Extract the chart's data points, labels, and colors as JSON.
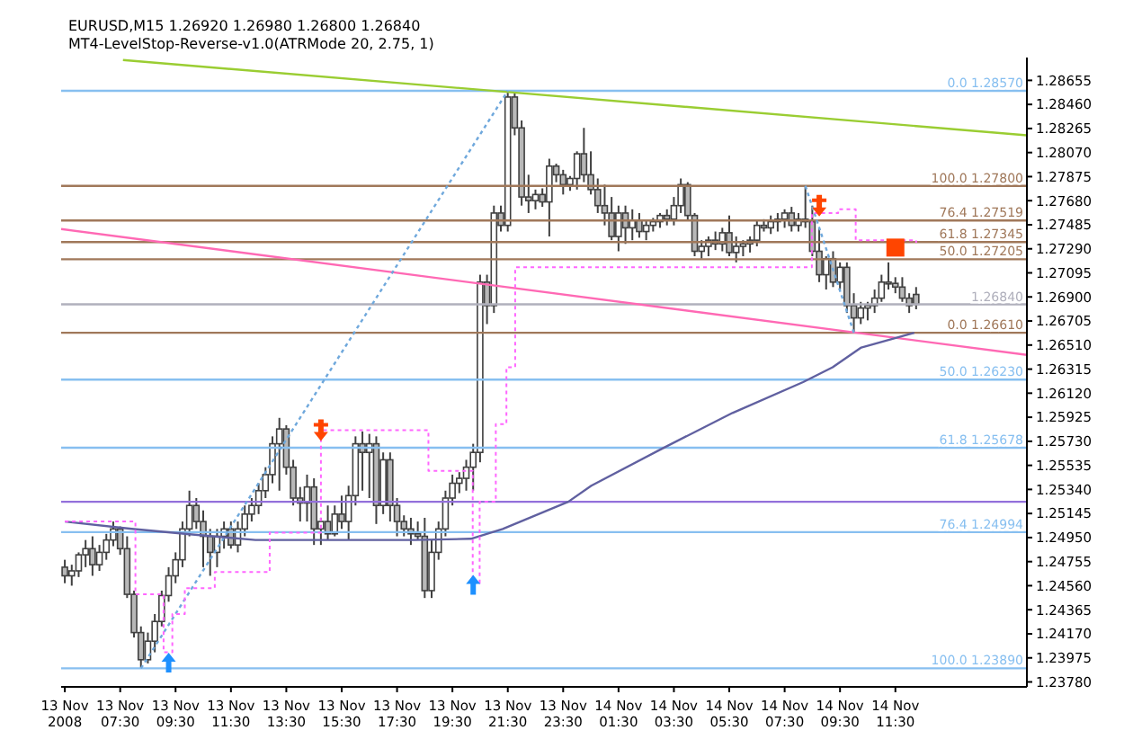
{
  "chart_data": {
    "type": "candlestick",
    "title": "EURUSD,M15  1.26920 1.26980 1.26800 1.26840",
    "subtitle": "MT4-LevelStop-Reverse-v1.0(ATRMode 20, 2.75, 1)",
    "color": "#404040",
    "x": [
      "2008-11-13T05:30",
      "2008-11-13T05:45",
      "2008-11-13T06:00",
      "2008-11-13T06:15",
      "2008-11-13T06:30",
      "2008-11-13T06:45",
      "2008-11-13T07:00",
      "2008-11-13T07:15",
      "2008-11-13T07:30",
      "2008-11-13T07:45",
      "2008-11-13T08:00",
      "2008-11-13T08:15",
      "2008-11-13T08:30",
      "2008-11-13T08:45",
      "2008-11-13T09:00",
      "2008-11-13T09:15",
      "2008-11-13T09:30",
      "2008-11-13T09:45",
      "2008-11-13T10:00",
      "2008-11-13T10:15",
      "2008-11-13T10:30",
      "2008-11-13T10:45",
      "2008-11-13T11:00",
      "2008-11-13T11:15",
      "2008-11-13T11:30",
      "2008-11-13T11:45",
      "2008-11-13T12:00",
      "2008-11-13T12:15",
      "2008-11-13T12:30",
      "2008-11-13T12:45",
      "2008-11-13T13:00",
      "2008-11-13T13:15",
      "2008-11-13T13:30",
      "2008-11-13T13:45",
      "2008-11-13T14:00",
      "2008-11-13T14:15",
      "2008-11-13T14:30",
      "2008-11-13T14:45",
      "2008-11-13T15:00",
      "2008-11-13T15:15",
      "2008-11-13T15:30",
      "2008-11-13T15:45",
      "2008-11-13T16:00",
      "2008-11-13T16:15",
      "2008-11-13T16:30",
      "2008-11-13T16:45",
      "2008-11-13T17:00",
      "2008-11-13T17:15",
      "2008-11-13T17:30",
      "2008-11-13T17:45",
      "2008-11-13T18:00",
      "2008-11-13T18:15",
      "2008-11-13T18:30",
      "2008-11-13T18:45",
      "2008-11-13T19:00",
      "2008-11-13T19:15",
      "2008-11-13T19:30",
      "2008-11-13T19:45",
      "2008-11-13T20:00",
      "2008-11-13T20:15",
      "2008-11-13T20:30",
      "2008-11-13T20:45",
      "2008-11-13T21:00",
      "2008-11-13T21:15",
      "2008-11-13T21:30",
      "2008-11-13T21:45",
      "2008-11-13T22:00",
      "2008-11-13T22:15",
      "2008-11-13T22:30",
      "2008-11-13T22:45",
      "2008-11-13T23:00",
      "2008-11-13T23:15",
      "2008-11-13T23:30",
      "2008-11-13T23:45",
      "2008-11-14T00:00",
      "2008-11-14T00:15",
      "2008-11-14T00:30",
      "2008-11-14T00:45",
      "2008-11-14T01:00",
      "2008-11-14T01:15",
      "2008-11-14T01:30",
      "2008-11-14T01:45",
      "2008-11-14T02:00",
      "2008-11-14T02:15",
      "2008-11-14T02:30",
      "2008-11-14T02:45",
      "2008-11-14T03:00",
      "2008-11-14T03:15",
      "2008-11-14T03:30",
      "2008-11-14T03:45",
      "2008-11-14T04:00",
      "2008-11-14T04:15",
      "2008-11-14T04:30",
      "2008-11-14T04:45",
      "2008-11-14T05:00",
      "2008-11-14T05:15",
      "2008-11-14T05:30",
      "2008-11-14T05:45",
      "2008-11-14T06:00",
      "2008-11-14T06:15",
      "2008-11-14T06:30",
      "2008-11-14T06:45",
      "2008-11-14T07:00",
      "2008-11-14T07:15",
      "2008-11-14T07:30",
      "2008-11-14T07:45",
      "2008-11-14T08:00",
      "2008-11-14T08:15",
      "2008-11-14T08:30",
      "2008-11-14T08:45",
      "2008-11-14T09:00",
      "2008-11-14T09:15",
      "2008-11-14T09:30",
      "2008-11-14T09:45",
      "2008-11-14T10:00",
      "2008-11-14T10:15",
      "2008-11-14T10:30",
      "2008-11-14T10:45",
      "2008-11-14T11:00",
      "2008-11-14T11:15",
      "2008-11-14T11:30",
      "2008-11-14T11:45",
      "2008-11-14T12:00",
      "2008-11-14T12:15"
    ],
    "ohlc": [
      [
        1.2471,
        1.2477,
        1.2458,
        1.2464
      ],
      [
        1.2464,
        1.2473,
        1.2456,
        1.2468
      ],
      [
        1.2468,
        1.2483,
        1.2463,
        1.2481
      ],
      [
        1.2481,
        1.2493,
        1.2471,
        1.2486
      ],
      [
        1.2486,
        1.2496,
        1.2464,
        1.2473
      ],
      [
        1.2473,
        1.2489,
        1.2468,
        1.2483
      ],
      [
        1.2483,
        1.2498,
        1.2477,
        1.2493
      ],
      [
        1.2493,
        1.2508,
        1.2488,
        1.2502
      ],
      [
        1.2502,
        1.2504,
        1.2481,
        1.2486
      ],
      [
        1.2486,
        1.2496,
        1.2446,
        1.2449
      ],
      [
        1.2449,
        1.2452,
        1.2414,
        1.2418
      ],
      [
        1.2418,
        1.2423,
        1.2389,
        1.2396
      ],
      [
        1.2396,
        1.2418,
        1.2393,
        1.2411
      ],
      [
        1.2411,
        1.2433,
        1.2402,
        1.2427
      ],
      [
        1.2427,
        1.2452,
        1.2423,
        1.2448
      ],
      [
        1.2448,
        1.2471,
        1.2443,
        1.2464
      ],
      [
        1.2464,
        1.2483,
        1.2458,
        1.2477
      ],
      [
        1.2477,
        1.2508,
        1.2471,
        1.2502
      ],
      [
        1.2502,
        1.2533,
        1.2496,
        1.2521
      ],
      [
        1.2521,
        1.2527,
        1.2502,
        1.2508
      ],
      [
        1.2508,
        1.2517,
        1.2471,
        1.2496
      ],
      [
        1.2496,
        1.2502,
        1.2464,
        1.2483
      ],
      [
        1.2483,
        1.2502,
        1.2471,
        1.2496
      ],
      [
        1.2496,
        1.2508,
        1.2486,
        1.2502
      ],
      [
        1.2502,
        1.2508,
        1.2486,
        1.2489
      ],
      [
        1.2489,
        1.2508,
        1.2483,
        1.2502
      ],
      [
        1.2502,
        1.2521,
        1.2496,
        1.2514
      ],
      [
        1.2514,
        1.2527,
        1.2508,
        1.2521
      ],
      [
        1.2521,
        1.2539,
        1.2514,
        1.2533
      ],
      [
        1.2533,
        1.2552,
        1.2527,
        1.2546
      ],
      [
        1.2546,
        1.2577,
        1.2539,
        1.2571
      ],
      [
        1.2571,
        1.2592,
        1.2533,
        1.2583
      ],
      [
        1.2583,
        1.2586,
        1.2546,
        1.2552
      ],
      [
        1.2552,
        1.2558,
        1.2521,
        1.2527
      ],
      [
        1.2527,
        1.2536,
        1.2508,
        1.2523
      ],
      [
        1.2523,
        1.2546,
        1.2508,
        1.2536
      ],
      [
        1.2536,
        1.2543,
        1.2489,
        1.2502
      ],
      [
        1.2502,
        1.2511,
        1.2489,
        1.2508
      ],
      [
        1.2508,
        1.2521,
        1.2493,
        1.2498
      ],
      [
        1.2498,
        1.2521,
        1.2496,
        1.2514
      ],
      [
        1.2514,
        1.2529,
        1.2502,
        1.2508
      ],
      [
        1.2508,
        1.2537,
        1.2493,
        1.2529
      ],
      [
        1.2529,
        1.2577,
        1.2521,
        1.2571
      ],
      [
        1.2571,
        1.2581,
        1.2533,
        1.2564
      ],
      [
        1.2564,
        1.2579,
        1.2527,
        1.2571
      ],
      [
        1.2571,
        1.2577,
        1.2506,
        1.2521
      ],
      [
        1.2521,
        1.2564,
        1.2514,
        1.2558
      ],
      [
        1.2558,
        1.2564,
        1.2508,
        1.2521
      ],
      [
        1.2521,
        1.2527,
        1.2496,
        1.2508
      ],
      [
        1.2508,
        1.2513,
        1.2496,
        1.2502
      ],
      [
        1.2502,
        1.2511,
        1.2489,
        1.2498
      ],
      [
        1.2498,
        1.2508,
        1.2493,
        1.2496
      ],
      [
        1.2496,
        1.2511,
        1.2446,
        1.2452
      ],
      [
        1.2452,
        1.2493,
        1.2446,
        1.2483
      ],
      [
        1.2483,
        1.2508,
        1.2477,
        1.2502
      ],
      [
        1.2502,
        1.2533,
        1.2496,
        1.2527
      ],
      [
        1.2527,
        1.2546,
        1.2521,
        1.2539
      ],
      [
        1.2539,
        1.2548,
        1.2531,
        1.2543
      ],
      [
        1.2543,
        1.2558,
        1.2533,
        1.2552
      ],
      [
        1.2552,
        1.2571,
        1.2533,
        1.2564
      ],
      [
        1.2564,
        1.2708,
        1.2556,
        1.2702
      ],
      [
        1.2702,
        1.2708,
        1.2668,
        1.2683
      ],
      [
        1.2683,
        1.2764,
        1.2677,
        1.2758
      ],
      [
        1.2758,
        1.2764,
        1.2743,
        1.2748
      ],
      [
        1.2748,
        1.2857,
        1.2743,
        1.2852
      ],
      [
        1.2852,
        1.2856,
        1.2821,
        1.2827
      ],
      [
        1.2827,
        1.2833,
        1.2764,
        1.2771
      ],
      [
        1.2771,
        1.2789,
        1.2758,
        1.2768
      ],
      [
        1.2768,
        1.2777,
        1.2761,
        1.2773
      ],
      [
        1.2773,
        1.2778,
        1.2763,
        1.2767
      ],
      [
        1.2767,
        1.2802,
        1.2739,
        1.2796
      ],
      [
        1.2796,
        1.2798,
        1.2783,
        1.2789
      ],
      [
        1.2789,
        1.2793,
        1.2773,
        1.2781
      ],
      [
        1.2781,
        1.2788,
        1.2776,
        1.2786
      ],
      [
        1.2786,
        1.2808,
        1.2777,
        1.2806
      ],
      [
        1.2806,
        1.2827,
        1.2783,
        1.2789
      ],
      [
        1.2789,
        1.2808,
        1.2773,
        1.2777
      ],
      [
        1.2777,
        1.2786,
        1.2758,
        1.2764
      ],
      [
        1.2764,
        1.2781,
        1.2748,
        1.2758
      ],
      [
        1.2758,
        1.2771,
        1.2736,
        1.2739
      ],
      [
        1.2739,
        1.2764,
        1.2727,
        1.2758
      ],
      [
        1.2758,
        1.2764,
        1.2733,
        1.2746
      ],
      [
        1.2746,
        1.2761,
        1.2736,
        1.2752
      ],
      [
        1.2752,
        1.2758,
        1.2738,
        1.2743
      ],
      [
        1.2743,
        1.2752,
        1.2736,
        1.2748
      ],
      [
        1.2748,
        1.2754,
        1.2743,
        1.2751
      ],
      [
        1.2751,
        1.2758,
        1.2746,
        1.2756
      ],
      [
        1.2756,
        1.2761,
        1.2748,
        1.2753
      ],
      [
        1.2753,
        1.2771,
        1.2748,
        1.2764
      ],
      [
        1.2764,
        1.2786,
        1.2758,
        1.2781
      ],
      [
        1.2781,
        1.2783,
        1.2752,
        1.2756
      ],
      [
        1.2756,
        1.2758,
        1.2723,
        1.2727
      ],
      [
        1.2727,
        1.2736,
        1.2721,
        1.2731
      ],
      [
        1.2731,
        1.2739,
        1.2723,
        1.2736
      ],
      [
        1.2736,
        1.2743,
        1.2728,
        1.2733
      ],
      [
        1.2733,
        1.2746,
        1.2727,
        1.2742
      ],
      [
        1.2742,
        1.2756,
        1.2723,
        1.2726
      ],
      [
        1.2726,
        1.2739,
        1.2718,
        1.2731
      ],
      [
        1.2731,
        1.2736,
        1.2723,
        1.2733
      ],
      [
        1.2733,
        1.2739,
        1.2726,
        1.2736
      ],
      [
        1.2736,
        1.2752,
        1.2731,
        1.2748
      ],
      [
        1.2748,
        1.2753,
        1.2743,
        1.2746
      ],
      [
        1.2746,
        1.2756,
        1.2741,
        1.2751
      ],
      [
        1.2751,
        1.2758,
        1.2743,
        1.2753
      ],
      [
        1.2753,
        1.2761,
        1.2746,
        1.2758
      ],
      [
        1.2758,
        1.2763,
        1.2743,
        1.2748
      ],
      [
        1.2748,
        1.2758,
        1.2743,
        1.2753
      ],
      [
        1.2753,
        1.278,
        1.2746,
        1.2751
      ],
      [
        1.2751,
        1.2764,
        1.2723,
        1.2727
      ],
      [
        1.2727,
        1.2746,
        1.2702,
        1.2708
      ],
      [
        1.2708,
        1.2723,
        1.2696,
        1.2721
      ],
      [
        1.2721,
        1.2727,
        1.2698,
        1.2702
      ],
      [
        1.2702,
        1.2718,
        1.2696,
        1.2714
      ],
      [
        1.2714,
        1.2718,
        1.2677,
        1.2683
      ],
      [
        1.2683,
        1.2693,
        1.2661,
        1.2673
      ],
      [
        1.2673,
        1.2686,
        1.2668,
        1.2681
      ],
      [
        1.2681,
        1.2686,
        1.2671,
        1.2683
      ],
      [
        1.2683,
        1.2696,
        1.2677,
        1.2689
      ],
      [
        1.2689,
        1.2708,
        1.2686,
        1.2702
      ],
      [
        1.2702,
        1.2718,
        1.2696,
        1.2701
      ],
      [
        1.2701,
        1.2706,
        1.2693,
        1.2698
      ],
      [
        1.2698,
        1.2706,
        1.2686,
        1.2689
      ],
      [
        1.2689,
        1.2693,
        1.2677,
        1.2683
      ],
      [
        1.2692,
        1.2698,
        1.268,
        1.2684
      ]
    ],
    "series": [
      {
        "type": "line",
        "color": "#9acd32",
        "x": [
          "2008-11-13T07:36",
          "2008-11-14T16:15"
        ],
        "values": [
          1.2882,
          1.2821
        ]
      },
      {
        "type": "line",
        "color": "#ff69b4",
        "x": [
          "2008-11-13T05:22",
          "2008-11-14T16:15"
        ],
        "values": [
          1.2745,
          1.2643
        ]
      },
      {
        "type": "line",
        "color": "#6fa8dc",
        "line_style": "dotted",
        "x": [
          "2008-11-13T08:15",
          "2008-11-13T21:30"
        ],
        "values": [
          1.2389,
          1.2857
        ]
      },
      {
        "type": "line",
        "color": "#6fa8dc",
        "line_style": "dotted",
        "x": [
          "2008-11-14T08:15",
          "2008-11-14T10:00"
        ],
        "values": [
          1.278,
          1.2661
        ]
      },
      {
        "type": "line",
        "color": "#6060a0",
        "x": [
          "2008-11-13T05:30",
          "2008-11-13T07:55",
          "2008-11-13T09:50",
          "2008-11-13T12:23",
          "2008-11-13T18:08",
          "2008-11-13T20:10",
          "2008-11-13T21:19",
          "2008-11-13T23:41",
          "2008-11-14T00:31",
          "2008-11-14T03:04",
          "2008-11-14T05:37",
          "2008-11-14T08:10",
          "2008-11-14T09:14",
          "2008-11-14T10:16",
          "2008-11-14T12:11"
        ],
        "values": [
          1.2508,
          1.2502,
          1.2498,
          1.2493,
          1.2493,
          1.2494,
          1.2502,
          1.2524,
          1.2537,
          1.2567,
          1.2596,
          1.2621,
          1.2633,
          1.2649,
          1.2661
        ]
      },
      {
        "type": "step",
        "color": "#ff66ff",
        "line_style": "dotted",
        "x": [
          "2008-11-13T05:30",
          "2008-11-13T08:03",
          "2008-11-13T09:04",
          "2008-11-13T09:23",
          "2008-11-13T09:50",
          "2008-11-13T10:55",
          "2008-11-13T12:54",
          "2008-11-13T14:45",
          "2008-11-13T18:38",
          "2008-11-13T20:14",
          "2008-11-13T20:29",
          "2008-11-13T21:04",
          "2008-11-13T21:27",
          "2008-11-13T21:46",
          "2008-11-14T08:29",
          "2008-11-14T09:26",
          "2008-11-14T10:04",
          "2008-11-14T12:15"
        ],
        "values": [
          1.2508,
          1.2449,
          1.2402,
          1.2433,
          1.2454,
          1.2467,
          1.2499,
          1.2582,
          1.2549,
          1.2458,
          1.2524,
          1.2587,
          1.2633,
          1.2714,
          1.2758,
          1.2761,
          1.2736,
          1.2734
        ]
      },
      {
        "type": "scatter",
        "marker": "triangle",
        "color": "#1e90ff",
        "x": [
          "2008-11-13T09:15",
          "2008-11-13T20:15"
        ],
        "values": [
          1.2393,
          1.2456
        ]
      },
      {
        "type": "scatter",
        "marker": "cross",
        "color": "#ff4500",
        "x": [
          "2008-11-13T14:45",
          "2008-11-14T08:45"
        ],
        "values": [
          1.2582,
          1.2764
        ]
      },
      {
        "type": "scatter",
        "marker": "square",
        "color": "#ff4500",
        "x": [
          "2008-11-14T11:30"
        ],
        "values": [
          1.273
        ]
      }
    ],
    "ref_lines": [
      {
        "axis": "y",
        "value": 1.2857,
        "label": "0.0 1.28570",
        "color": "#87bff0"
      },
      {
        "axis": "y",
        "value": 1.2623,
        "label": "50.0 1.26230",
        "color": "#87bff0"
      },
      {
        "axis": "y",
        "value": 1.25678,
        "label": "61.8 1.25678",
        "color": "#87bff0"
      },
      {
        "axis": "y",
        "value": 1.24994,
        "label": "76.4 1.24994",
        "color": "#87bff0"
      },
      {
        "axis": "y",
        "value": 1.2389,
        "label": "100.0 1.23890",
        "color": "#87bff0"
      },
      {
        "axis": "y",
        "value": 1.278,
        "label": "100.0 1.27800",
        "color": "#a0785a"
      },
      {
        "axis": "y",
        "value": 1.27519,
        "label": "76.4 1.27519",
        "color": "#a0785a"
      },
      {
        "axis": "y",
        "value": 1.27345,
        "label": "61.8 1.27345",
        "color": "#a0785a"
      },
      {
        "axis": "y",
        "value": 1.27205,
        "label": "50.0 1.27205",
        "color": "#a0785a"
      },
      {
        "axis": "y",
        "value": 1.2661,
        "label": "0.0 1.26610",
        "color": "#a0785a"
      },
      {
        "axis": "y",
        "value": 1.2524,
        "color": "#9370db"
      },
      {
        "axis": "y",
        "value": 1.2684,
        "label": "1.26840",
        "color": "#b0b0bc"
      }
    ],
    "xlim": [
      "2008-11-13T05:22",
      "2008-11-14T16:15"
    ],
    "xticks": [
      {
        "value": "2008-11-13T05:30",
        "label": "13 Nov 2008"
      },
      {
        "value": "2008-11-13T07:30",
        "label": "13 Nov 07:30"
      },
      {
        "value": "2008-11-13T09:30",
        "label": "13 Nov 09:30"
      },
      {
        "value": "2008-11-13T11:30",
        "label": "13 Nov 11:30"
      },
      {
        "value": "2008-11-13T13:30",
        "label": "13 Nov 13:30"
      },
      {
        "value": "2008-11-13T15:30",
        "label": "13 Nov 15:30"
      },
      {
        "value": "2008-11-13T17:30",
        "label": "13 Nov 17:30"
      },
      {
        "value": "2008-11-13T19:30",
        "label": "13 Nov 19:30"
      },
      {
        "value": "2008-11-13T21:30",
        "label": "13 Nov 21:30"
      },
      {
        "value": "2008-11-13T23:30",
        "label": "13 Nov 23:30"
      },
      {
        "value": "2008-11-14T01:30",
        "label": "14 Nov 01:30"
      },
      {
        "value": "2008-11-14T03:30",
        "label": "14 Nov 03:30"
      },
      {
        "value": "2008-11-14T05:30",
        "label": "14 Nov 05:30"
      },
      {
        "value": "2008-11-14T07:30",
        "label": "14 Nov 07:30"
      },
      {
        "value": "2008-11-14T09:30",
        "label": "14 Nov 09:30"
      },
      {
        "value": "2008-11-14T11:30",
        "label": "14 Nov 11:30"
      }
    ],
    "ylim": [
      1.2374,
      1.2884
    ],
    "yticks": [
      1.28655,
      {
        "value": 1.2846,
        "label": "1.28460"
      },
      1.28265,
      {
        "value": 1.2807,
        "label": "1.28070"
      },
      1.27875,
      {
        "value": 1.2768,
        "label": "1.27680"
      },
      1.27485,
      {
        "value": 1.2729,
        "label": "1.27290"
      },
      1.27095,
      {
        "value": 1.269,
        "label": "1.26900"
      },
      1.26705,
      {
        "value": 1.2651,
        "label": "1.26510"
      },
      1.26315,
      {
        "value": 1.2612,
        "label": "1.26120"
      },
      1.25925,
      {
        "value": 1.2573,
        "label": "1.25730"
      },
      1.25535,
      {
        "value": 1.2534,
        "label": "1.25340"
      },
      1.25145,
      {
        "value": 1.2495,
        "label": "1.24950"
      },
      1.24755,
      {
        "value": 1.2456,
        "label": "1.24560"
      },
      1.24365,
      {
        "value": 1.2417,
        "label": "1.24170"
      },
      1.23975,
      {
        "value": 1.2378,
        "label": "1.23780"
      }
    ]
  }
}
